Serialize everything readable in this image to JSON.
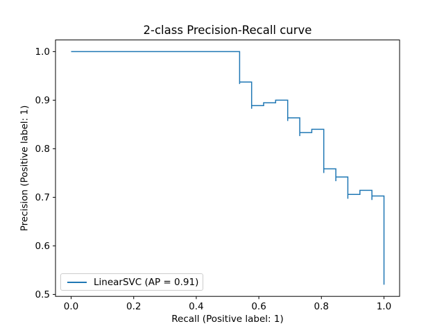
{
  "figure": {
    "background_color": "#ffffff",
    "text_color": "#000000"
  },
  "chart_data": {
    "type": "line",
    "title": "2-class Precision-Recall curve",
    "xlabel": "Recall (Positive label: 1)",
    "ylabel": "Precision (Positive label: 1)",
    "line_color": "#1f77b4",
    "line_width": 1.5,
    "draw_style": "steps-post",
    "grid": false,
    "xlim": [
      -0.05,
      1.05
    ],
    "ylim": [
      0.496,
      1.024
    ],
    "x_ticks": [
      0.0,
      0.2,
      0.4,
      0.6,
      0.8,
      1.0
    ],
    "x_tick_labels": [
      "0.0",
      "0.2",
      "0.4",
      "0.6",
      "0.8",
      "1.0"
    ],
    "y_ticks": [
      0.5,
      0.6,
      0.7,
      0.8,
      0.9,
      1.0
    ],
    "y_tick_labels": [
      "0.5",
      "0.6",
      "0.7",
      "0.8",
      "0.9",
      "1.0"
    ],
    "legend": {
      "position": "lower left",
      "entries": [
        {
          "label": "LinearSVC (AP = 0.91)",
          "color": "#1f77b4"
        }
      ]
    },
    "series": [
      {
        "name": "LinearSVC (AP = 0.91)",
        "average_precision": 0.91,
        "points_recall_precision": [
          [
            0.0,
            1.0
          ],
          [
            0.5385,
            1.0
          ],
          [
            0.5385,
            0.9333
          ],
          [
            0.5385,
            0.9375
          ],
          [
            0.5769,
            0.9375
          ],
          [
            0.5769,
            0.8824
          ],
          [
            0.5769,
            0.8889
          ],
          [
            0.6154,
            0.8889
          ],
          [
            0.6154,
            0.8947
          ],
          [
            0.6538,
            0.8947
          ],
          [
            0.6538,
            0.9
          ],
          [
            0.6923,
            0.9
          ],
          [
            0.6923,
            0.8571
          ],
          [
            0.6923,
            0.8636
          ],
          [
            0.7308,
            0.8636
          ],
          [
            0.7308,
            0.8261
          ],
          [
            0.7308,
            0.8333
          ],
          [
            0.7692,
            0.8333
          ],
          [
            0.7692,
            0.84
          ],
          [
            0.8077,
            0.84
          ],
          [
            0.8077,
            0.75
          ],
          [
            0.8077,
            0.7586
          ],
          [
            0.8462,
            0.7586
          ],
          [
            0.8462,
            0.7333
          ],
          [
            0.8462,
            0.7419
          ],
          [
            0.8846,
            0.7419
          ],
          [
            0.8846,
            0.697
          ],
          [
            0.8846,
            0.7059
          ],
          [
            0.9231,
            0.7059
          ],
          [
            0.9231,
            0.7143
          ],
          [
            0.9615,
            0.7143
          ],
          [
            0.9615,
            0.6944
          ],
          [
            0.9615,
            0.7027
          ],
          [
            1.0,
            0.7027
          ],
          [
            1.0,
            0.52
          ]
        ]
      }
    ]
  }
}
